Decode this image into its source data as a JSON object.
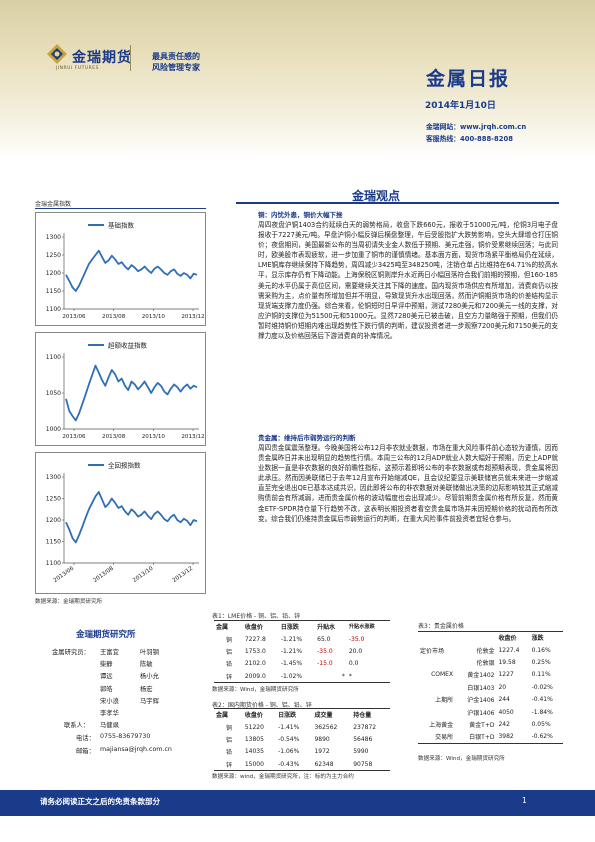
{
  "header": {
    "logo_cn": "金瑞期货",
    "logo_en": "JINRUI FUTURES",
    "slogan_line1": "最具责任感的",
    "slogan_line2": "风险管理专家",
    "report_title": "金属日报",
    "date": "2014年1月10日",
    "website": "金瑞网站：www.jrqh.com.cn",
    "hotline": "客服热线：400-888-8208"
  },
  "left_column": {
    "section_label": "金瑞金属指数",
    "source": "数据来源：金瑞期货研究所"
  },
  "chart_data": [
    {
      "type": "line",
      "legend": "基础指数",
      "tick_labels_x": [
        "2013/06",
        "2013/08",
        "2013/10",
        "2013/12"
      ],
      "yticks": [
        1100,
        1150,
        1200,
        1250,
        1300
      ],
      "ylim": [
        1100,
        1300
      ],
      "values": [
        1195,
        1178,
        1160,
        1150,
        1165,
        1185,
        1205,
        1225,
        1238,
        1250,
        1262,
        1245,
        1228,
        1235,
        1248,
        1238,
        1225,
        1230,
        1218,
        1210,
        1222,
        1215,
        1205,
        1210,
        1218,
        1208,
        1200,
        1212,
        1218,
        1210,
        1200,
        1195,
        1205,
        1210,
        1198,
        1192,
        1200,
        1195,
        1185,
        1198,
        1195
      ]
    },
    {
      "type": "line",
      "legend": "超额收益指数",
      "tick_labels_x": [
        "2013/06",
        "2013/08",
        "2013/10",
        "2013/12"
      ],
      "yticks": [
        1000,
        1050,
        1100
      ],
      "ylim": [
        1000,
        1100
      ],
      "values": [
        1042,
        1025,
        1018,
        1012,
        1022,
        1035,
        1048,
        1062,
        1075,
        1088,
        1078,
        1068,
        1060,
        1072,
        1082,
        1076,
        1066,
        1070,
        1060,
        1054,
        1066,
        1062,
        1055,
        1060,
        1066,
        1058,
        1050,
        1058,
        1064,
        1060,
        1052,
        1048,
        1056,
        1062,
        1058,
        1052,
        1058,
        1062,
        1056,
        1060,
        1058
      ]
    },
    {
      "type": "line",
      "legend": "全回报指数",
      "tick_labels_x": [
        "2013/06",
        "2013/08",
        "2013/10",
        "2013/12"
      ],
      "yticks": [
        1100,
        1150,
        1200,
        1250,
        1300
      ],
      "ylim": [
        1100,
        1300
      ],
      "values": [
        1195,
        1178,
        1158,
        1148,
        1165,
        1185,
        1205,
        1225,
        1240,
        1255,
        1265,
        1248,
        1230,
        1238,
        1250,
        1240,
        1228,
        1232,
        1220,
        1212,
        1225,
        1218,
        1208,
        1212,
        1220,
        1210,
        1202,
        1214,
        1220,
        1212,
        1202,
        1197,
        1207,
        1212,
        1200,
        1195,
        1203,
        1198,
        1188,
        1200,
        1197
      ]
    }
  ],
  "main": {
    "section_title": "金瑞观点",
    "copper_heading": "铜：内忧外患，铜价大幅下挫",
    "copper_text": "周四夜盘沪铜1403合约延续白天的弱势格局，收盘下跌660元，报收于51000元/吨，伦铜3月电子盘报收于7227美元/吨。早盘沪铜小幅反弹后横盘整理，午后受股指扩大跌势影响，空头大肆增仓打压铜价；夜盘期间，美国最新公布的当周初请失业金人数低于预期、美元走强，铜价受累继续回落；与此同时，欧美股市表现疲软，进一步加重了铜市的谨慎情绪。基本面方面，现货市场紧平衡格局仍在延续，LME铜库存继续保持下降趋势，周四减少3425吨至348250吨，注销仓单占比维持在64.71%的较高水平，显示库存仍有下降动能。上海保税区铜则岸升水近两日小幅回落符合我们前期的预期，但160-185美元的水平仍属于高位区间，需要继续关注其下降的速度。国内现货市场供应有所增加，消费商仍以按需采购为主，点价量有所增加但并不明显，导致现货升水出现回落，然而沪铜期货市场的价差结构显示现货端支撑力度仍强。综合来看，伦铜短时日早评中预期，测试7280美元和7200美元一线的支撑，对应沪铜的支撑位为51500元和51000元。显然7280美元已被击破，且空方力量略强于预期，但我们仍暂时维持铜价短期内难出现趋势性下跌行情的判断，建议投资者进一步观察7200美元和7150美元的支撑力度以及价格回落后下游消费商的补库情况。",
    "gold_heading": "贵金属：维持后市弱势运行的判断",
    "gold_text": "周四贵金属震荡整理。今晚美国将公布12月非农就业数据，市场在重大风险事件前心态较为谨慎，因而贵金属昨日并未出现明显的趋势性行情。本周三公布的12月ADP就业人数大幅好于预期，历史上ADP就业数据一直是非农数据的良好前瞻性指标，这预示着即将公布的非农数据或有超预期表现，贵金属将因此承压。然而因美联储已于去年12月宣布开始缩减QE，且会议纪要显示美联储官员就未来进一步缩减直至完全退出QE已基本达成共识，因此即将公布的非农数据对美联储做出决策的边际影响较其正式缩减购债前会有所减弱，进而贵金属价格的波动幅度也会出现减少。尽管前期贵金属价格有所反复，然而黄金ETF-SPDR持仓量下行趋势不改，这表明长期投资者看空贵金属市场并未因短期价格的扰动而有所改变。综合我们仍维持贵金属后市弱势运行的判断，在重大风险事件前投资者宜轻仓参与。"
  },
  "table1": {
    "title": "表1：LME价格 - 铜、铝、铅、锌",
    "headers": [
      "金属",
      "收盘价",
      "日涨跌",
      "升贴水",
      "升贴水涨跌"
    ],
    "rows": [
      [
        "铜",
        "7227.8",
        "-1.21%",
        "65.0",
        "-35.0"
      ],
      [
        "铝",
        "1753.0",
        "-1.21%",
        "-35.0",
        "20.0"
      ],
      [
        "铅",
        "2102.0",
        "-1.45%",
        "-15.0",
        "0.0"
      ],
      [
        "锌",
        "2009.0",
        "-1.02%",
        "*",
        "*"
      ]
    ],
    "source": "数据来源：Wind，金瑞期货研究所"
  },
  "table2": {
    "title": "表2：国内期货价格 - 铜、铝、铅、锌",
    "headers": [
      "金属",
      "收盘价",
      "日涨跌",
      "成交量",
      "持仓量"
    ],
    "rows": [
      [
        "铜",
        "51220",
        "-1.41%",
        "362562",
        "237872"
      ],
      [
        "铝",
        "13805",
        "-0.54%",
        "9890",
        "56486"
      ],
      [
        "铅",
        "14035",
        "-1.06%",
        "1972",
        "5990"
      ],
      [
        "锌",
        "15000",
        "-0.43%",
        "62348",
        "90758"
      ]
    ],
    "source": "数据来源：wind，金瑞期货研究所，注：标的为主力合约"
  },
  "table3": {
    "title": "表3：贵金属价格",
    "headers": [
      "",
      "收盘价",
      "涨跌"
    ],
    "rows": [
      [
        "定价市场",
        "伦敦金",
        "1227.4",
        "0.16%"
      ],
      [
        "",
        "伦敦银",
        "19.58",
        "0.25%"
      ],
      [
        "COMEX",
        "黄金1402",
        "1227",
        "0.11%"
      ],
      [
        "",
        "白银1403",
        "20",
        "-0.02%"
      ],
      [
        "上期所",
        "沪金1406",
        "244",
        "-0.41%"
      ],
      [
        "",
        "沪银1406",
        "4050",
        "-1.84%"
      ],
      [
        "上海黄金",
        "黄金T+D",
        "242",
        "0.05%"
      ],
      [
        "交易所",
        "白银T+D",
        "3982",
        "-0.62%"
      ]
    ],
    "source": "数据来源：Wind，金瑞期货研究所"
  },
  "team": {
    "title": "金瑞期货研究所",
    "label_researchers": "金属研究员：",
    "researchers_left": [
      "王富宜",
      "柴静",
      "谭远",
      "郭皓",
      "宋小浪",
      "李孝华"
    ],
    "researchers_right": [
      "叶羽钢",
      "陈敏",
      "杨小允",
      "杨宏",
      "马宇辉"
    ],
    "label_contact": "联系人：",
    "contact": "马健飒",
    "label_phone": "电话：",
    "phone": "0755-83679730",
    "label_email": "邮箱：",
    "email": "majiansa@jrqh.com.cn"
  },
  "footer": {
    "notice": "请务必阅读正文之后的免责条款部分",
    "page": "1"
  }
}
